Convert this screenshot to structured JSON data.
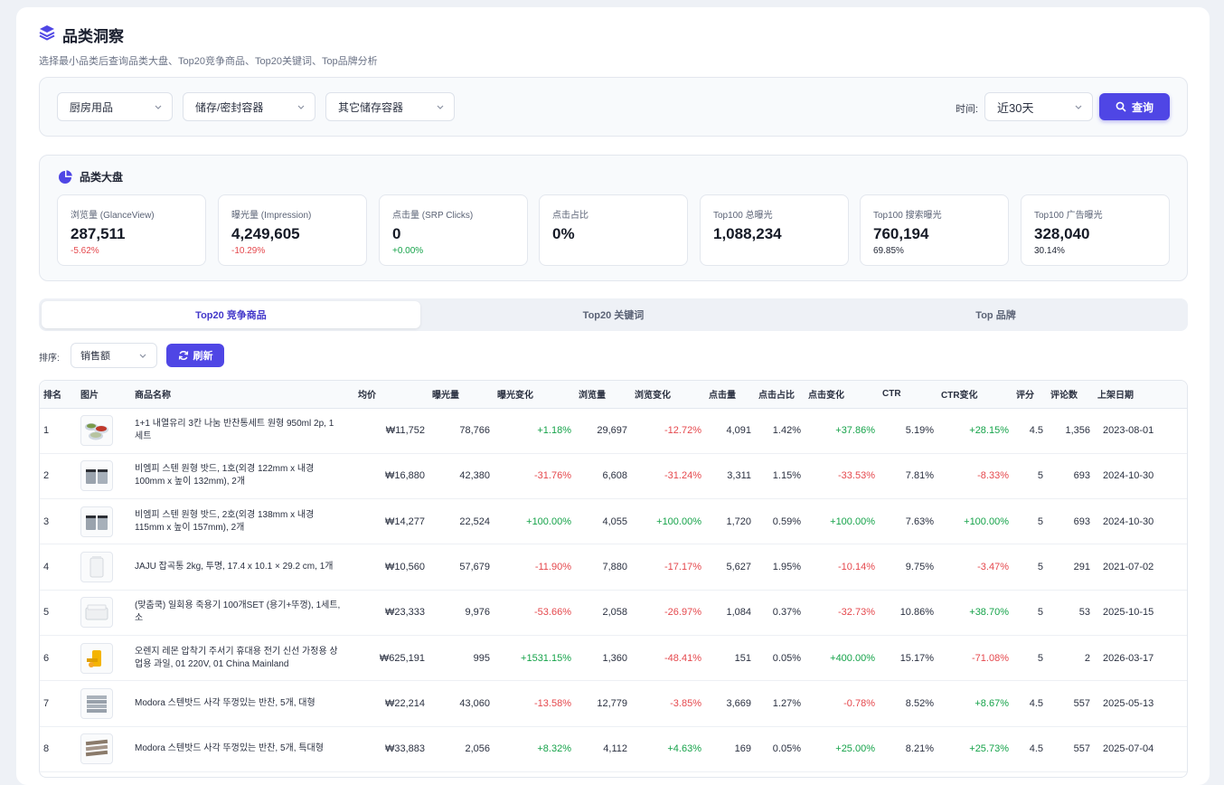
{
  "header": {
    "title": "品类洞察",
    "subtitle": "选择最小品类后查询品类大盘、Top20竞争商品、Top20关键词、Top品牌分析"
  },
  "filters": {
    "category1": "厨房用品",
    "category2": "储存/密封容器",
    "category3": "其它储存容器",
    "time_label": "时间:",
    "time_value": "近30天",
    "query_label": "查询"
  },
  "overview": {
    "title": "品类大盘",
    "metrics": [
      {
        "label": "浏览量 (GlanceView)",
        "value": "287,511",
        "sub": "-5.62%",
        "tone": "neg"
      },
      {
        "label": "曝光量 (Impression)",
        "value": "4,249,605",
        "sub": "-10.29%",
        "tone": "neg"
      },
      {
        "label": "点击量 (SRP Clicks)",
        "value": "0",
        "sub": "+0.00%",
        "tone": "pos"
      },
      {
        "label": "点击占比",
        "value": "0%",
        "sub": "",
        "tone": "plain"
      },
      {
        "label": "Top100 总曝光",
        "value": "1,088,234",
        "sub": "",
        "tone": "plain"
      },
      {
        "label": "Top100 搜索曝光",
        "value": "760,194",
        "sub": "69.85%",
        "tone": "plain"
      },
      {
        "label": "Top100 广告曝光",
        "value": "328,040",
        "sub": "30.14%",
        "tone": "plain"
      }
    ]
  },
  "tabs": [
    "Top20 竞争商品",
    "Top20 关键词",
    "Top 品牌"
  ],
  "toolbar": {
    "sort_label": "排序:",
    "sort_value": "销售额",
    "refresh_label": "刷新"
  },
  "table": {
    "columns": [
      "排名",
      "图片",
      "商品名称",
      "均价",
      "曝光量",
      "曝光变化",
      "浏览量",
      "浏览变化",
      "点击量",
      "点击占比",
      "点击变化",
      "CTR",
      "CTR变化",
      "评分",
      "评论数",
      "上架日期"
    ],
    "rows": [
      {
        "rank": "1",
        "name": "1+1 내열유리 3칸 나눔 반찬통세트 원형 950ml 2p, 1세트",
        "price": "₩11,752",
        "imp": "78,766",
        "imp_chg": "+1.18%",
        "gv": "29,697",
        "gv_chg": "-12.72%",
        "clicks": "4,091",
        "click_share": "1.42%",
        "click_chg": "+37.86%",
        "ctr": "5.19%",
        "ctr_chg": "+28.15%",
        "rating": "4.5",
        "reviews": "1,356",
        "date": "2023-08-01",
        "img": "bowls"
      },
      {
        "rank": "2",
        "name": "비엠피 스텐 원형 밧드, 1호(외경 122mm x 내경 100mm x 높이 132mm), 2개",
        "price": "₩16,880",
        "imp": "42,380",
        "imp_chg": "-31.76%",
        "gv": "6,608",
        "gv_chg": "-31.24%",
        "clicks": "3,311",
        "click_share": "1.15%",
        "click_chg": "-33.53%",
        "ctr": "7.81%",
        "ctr_chg": "-8.33%",
        "rating": "5",
        "reviews": "693",
        "date": "2024-10-30",
        "img": "cups"
      },
      {
        "rank": "3",
        "name": "비엠피 스텐 원형 밧드, 2호(외경 138mm x 내경 115mm x 높이 157mm), 2개",
        "price": "₩14,277",
        "imp": "22,524",
        "imp_chg": "+100.00%",
        "gv": "4,055",
        "gv_chg": "+100.00%",
        "clicks": "1,720",
        "click_share": "0.59%",
        "click_chg": "+100.00%",
        "ctr": "7.63%",
        "ctr_chg": "+100.00%",
        "rating": "5",
        "reviews": "693",
        "date": "2024-10-30",
        "img": "cups"
      },
      {
        "rank": "4",
        "name": "JAJU 잡곡통 2kg, 투명, 17.4 x 10.1 × 29.2 cm, 1개",
        "price": "₩10,560",
        "imp": "57,679",
        "imp_chg": "-11.90%",
        "gv": "7,880",
        "gv_chg": "-17.17%",
        "clicks": "5,627",
        "click_share": "1.95%",
        "click_chg": "-10.14%",
        "ctr": "9.75%",
        "ctr_chg": "-3.47%",
        "rating": "5",
        "reviews": "291",
        "date": "2021-07-02",
        "img": "jar"
      },
      {
        "rank": "5",
        "name": "(맞춤쿡) 일회용 죽용기 100개SET (용기+뚜껑), 1세트, 소",
        "price": "₩23,333",
        "imp": "9,976",
        "imp_chg": "-53.66%",
        "gv": "2,058",
        "gv_chg": "-26.97%",
        "clicks": "1,084",
        "click_share": "0.37%",
        "click_chg": "-32.73%",
        "ctr": "10.86%",
        "ctr_chg": "+38.70%",
        "rating": "5",
        "reviews": "53",
        "date": "2025-10-15",
        "img": "box"
      },
      {
        "rank": "6",
        "name": "오렌지 레몬 압착기 주서기 휴대용 전기 신선 가정용 상업용 과일, 01 220V, 01 China Mainland",
        "price": "₩625,191",
        "imp": "995",
        "imp_chg": "+1531.15%",
        "gv": "1,360",
        "gv_chg": "-48.41%",
        "clicks": "151",
        "click_share": "0.05%",
        "click_chg": "+400.00%",
        "ctr": "15.17%",
        "ctr_chg": "-71.08%",
        "rating": "5",
        "reviews": "2",
        "date": "2026-03-17",
        "img": "juicer"
      },
      {
        "rank": "7",
        "name": "Modora 스텐밧드 사각 뚜껑있는 반찬, 5개, 대형",
        "price": "₩22,214",
        "imp": "43,060",
        "imp_chg": "-13.58%",
        "gv": "12,779",
        "gv_chg": "-3.85%",
        "clicks": "3,669",
        "click_share": "1.27%",
        "click_chg": "-0.78%",
        "ctr": "8.52%",
        "ctr_chg": "+8.67%",
        "rating": "4.5",
        "reviews": "557",
        "date": "2025-05-13",
        "img": "trays"
      },
      {
        "rank": "8",
        "name": "Modora 스텐밧드 사각 뚜껑있는 반찬, 5개, 특대형",
        "price": "₩33,883",
        "imp": "2,056",
        "imp_chg": "+8.32%",
        "gv": "4,112",
        "gv_chg": "+4.63%",
        "clicks": "169",
        "click_share": "0.05%",
        "click_chg": "+25.00%",
        "ctr": "8.21%",
        "ctr_chg": "+25.73%",
        "rating": "4.5",
        "reviews": "557",
        "date": "2025-07-04",
        "img": "trays2"
      }
    ]
  },
  "colors": {
    "accent": "#4f46e5",
    "positive": "#16a34a",
    "negative": "#e5484d"
  }
}
